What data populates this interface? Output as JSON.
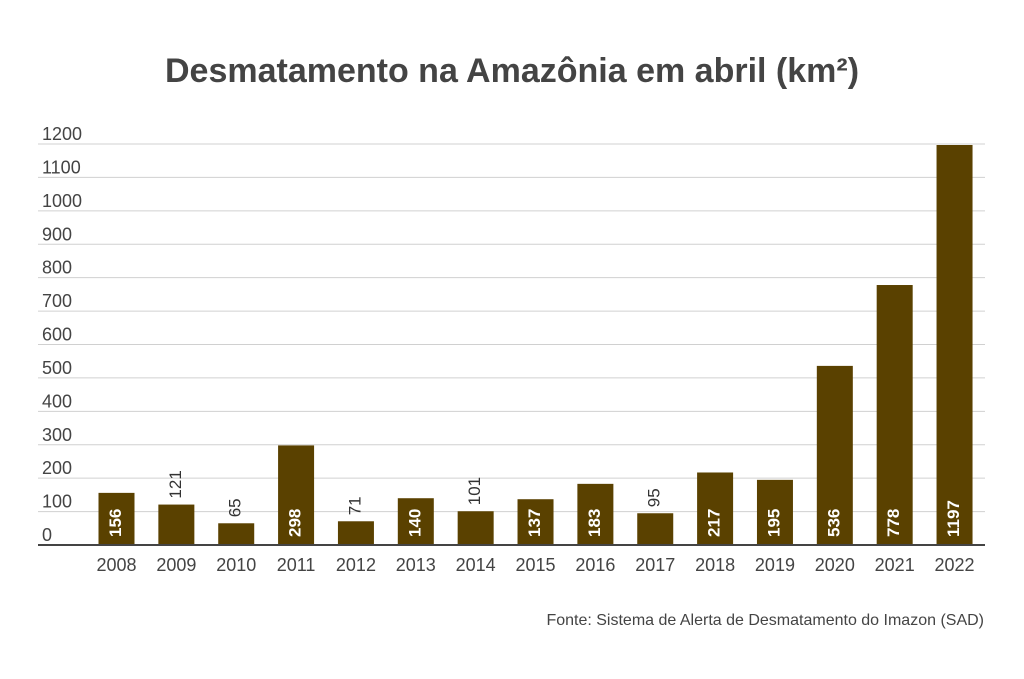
{
  "chart_data": {
    "type": "bar",
    "title": "Desmatamento na Amazônia em abril (km²)",
    "xlabel": "",
    "ylabel": "",
    "categories": [
      "2008",
      "2009",
      "2010",
      "2011",
      "2012",
      "2013",
      "2014",
      "2015",
      "2016",
      "2017",
      "2018",
      "2019",
      "2020",
      "2021",
      "2022"
    ],
    "values": [
      156,
      121,
      65,
      298,
      71,
      140,
      101,
      137,
      183,
      95,
      217,
      195,
      536,
      778,
      1197
    ],
    "ylim": [
      0,
      1200
    ],
    "yticks": [
      0,
      100,
      200,
      300,
      400,
      500,
      600,
      700,
      800,
      900,
      1000,
      1100,
      1200
    ],
    "grid": true,
    "bar_color": "#5a4100",
    "data_labels": "rotated, inside bar (white) or above bar (dark) when bar is short"
  },
  "source": "Fonte: Sistema de Alerta de Desmatamento do Imazon (SAD)"
}
